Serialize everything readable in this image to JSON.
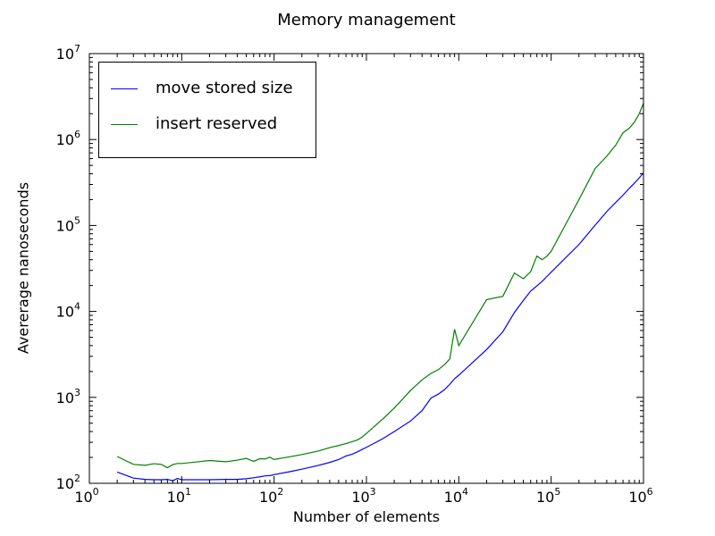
{
  "chart_data": {
    "type": "line",
    "title": "Memory management",
    "xlabel": "Number of elements",
    "ylabel": "Avererage nanoseconds",
    "xscale": "log",
    "yscale": "log",
    "xlim": [
      1,
      1000000
    ],
    "ylim": [
      100,
      10000000
    ],
    "grid": false,
    "legend_position": "top-left",
    "x_ticks": [
      {
        "value": 1,
        "base": "10",
        "exp": "0"
      },
      {
        "value": 10,
        "base": "10",
        "exp": "1"
      },
      {
        "value": 100,
        "base": "10",
        "exp": "2"
      },
      {
        "value": 1000,
        "base": "10",
        "exp": "3"
      },
      {
        "value": 10000,
        "base": "10",
        "exp": "4"
      },
      {
        "value": 100000,
        "base": "10",
        "exp": "5"
      },
      {
        "value": 1000000,
        "base": "10",
        "exp": "6"
      }
    ],
    "y_ticks": [
      {
        "value": 100,
        "base": "10",
        "exp": "2"
      },
      {
        "value": 1000,
        "base": "10",
        "exp": "3"
      },
      {
        "value": 10000,
        "base": "10",
        "exp": "4"
      },
      {
        "value": 100000,
        "base": "10",
        "exp": "5"
      },
      {
        "value": 1000000,
        "base": "10",
        "exp": "6"
      },
      {
        "value": 10000000,
        "base": "10",
        "exp": "7"
      }
    ],
    "series": [
      {
        "name": "move stored size",
        "color": "#0000ff",
        "points": [
          [
            2,
            135
          ],
          [
            3,
            115
          ],
          [
            4,
            111
          ],
          [
            5,
            110
          ],
          [
            6,
            110
          ],
          [
            7,
            111
          ],
          [
            8,
            107
          ],
          [
            9,
            114
          ],
          [
            10,
            110
          ],
          [
            15,
            110
          ],
          [
            20,
            110
          ],
          [
            30,
            111
          ],
          [
            40,
            111
          ],
          [
            50,
            113
          ],
          [
            60,
            116
          ],
          [
            70,
            119
          ],
          [
            80,
            122
          ],
          [
            90,
            123
          ],
          [
            100,
            126
          ],
          [
            150,
            137
          ],
          [
            200,
            146
          ],
          [
            300,
            161
          ],
          [
            400,
            175
          ],
          [
            500,
            189
          ],
          [
            600,
            208
          ],
          [
            700,
            218
          ],
          [
            800,
            232
          ],
          [
            900,
            248
          ],
          [
            1000,
            262
          ],
          [
            1500,
            330
          ],
          [
            2000,
            400
          ],
          [
            3000,
            530
          ],
          [
            4000,
            700
          ],
          [
            5000,
            980
          ],
          [
            6000,
            1090
          ],
          [
            7000,
            1230
          ],
          [
            8000,
            1420
          ],
          [
            9000,
            1650
          ],
          [
            10000,
            1810
          ],
          [
            20000,
            3600
          ],
          [
            30000,
            5800
          ],
          [
            40000,
            9700
          ],
          [
            50000,
            13400
          ],
          [
            60000,
            17200
          ],
          [
            70000,
            19800
          ],
          [
            80000,
            22400
          ],
          [
            90000,
            25500
          ],
          [
            100000,
            28600
          ],
          [
            200000,
            60000
          ],
          [
            300000,
            101000
          ],
          [
            400000,
            145000
          ],
          [
            500000,
            185000
          ],
          [
            600000,
            225000
          ],
          [
            700000,
            270000
          ],
          [
            800000,
            312000
          ],
          [
            900000,
            358000
          ],
          [
            1000000,
            410000
          ]
        ]
      },
      {
        "name": "insert reserved",
        "color": "#008000",
        "points": [
          [
            2,
            205
          ],
          [
            3,
            166
          ],
          [
            4,
            162
          ],
          [
            5,
            169
          ],
          [
            6,
            166
          ],
          [
            7,
            152
          ],
          [
            8,
            165
          ],
          [
            9,
            170
          ],
          [
            10,
            170
          ],
          [
            15,
            178
          ],
          [
            20,
            184
          ],
          [
            30,
            178
          ],
          [
            40,
            186
          ],
          [
            50,
            195
          ],
          [
            60,
            180
          ],
          [
            70,
            193
          ],
          [
            80,
            192
          ],
          [
            90,
            201
          ],
          [
            100,
            189
          ],
          [
            150,
            204
          ],
          [
            200,
            216
          ],
          [
            300,
            237
          ],
          [
            400,
            260
          ],
          [
            500,
            275
          ],
          [
            600,
            290
          ],
          [
            700,
            305
          ],
          [
            800,
            320
          ],
          [
            900,
            345
          ],
          [
            1000,
            380
          ],
          [
            1500,
            560
          ],
          [
            2000,
            750
          ],
          [
            3000,
            1200
          ],
          [
            4000,
            1600
          ],
          [
            5000,
            1900
          ],
          [
            6000,
            2100
          ],
          [
            7000,
            2400
          ],
          [
            8000,
            2800
          ],
          [
            9000,
            6200
          ],
          [
            10000,
            4000
          ],
          [
            20000,
            13700
          ],
          [
            30000,
            15000
          ],
          [
            40000,
            28000
          ],
          [
            50000,
            24000
          ],
          [
            60000,
            29000
          ],
          [
            70000,
            44000
          ],
          [
            80000,
            40000
          ],
          [
            90000,
            44000
          ],
          [
            100000,
            50000
          ],
          [
            200000,
            200000
          ],
          [
            300000,
            460000
          ],
          [
            400000,
            640000
          ],
          [
            500000,
            860000
          ],
          [
            600000,
            1200000
          ],
          [
            700000,
            1350000
          ],
          [
            800000,
            1600000
          ],
          [
            900000,
            2000000
          ],
          [
            1000000,
            2650000
          ]
        ]
      }
    ]
  }
}
